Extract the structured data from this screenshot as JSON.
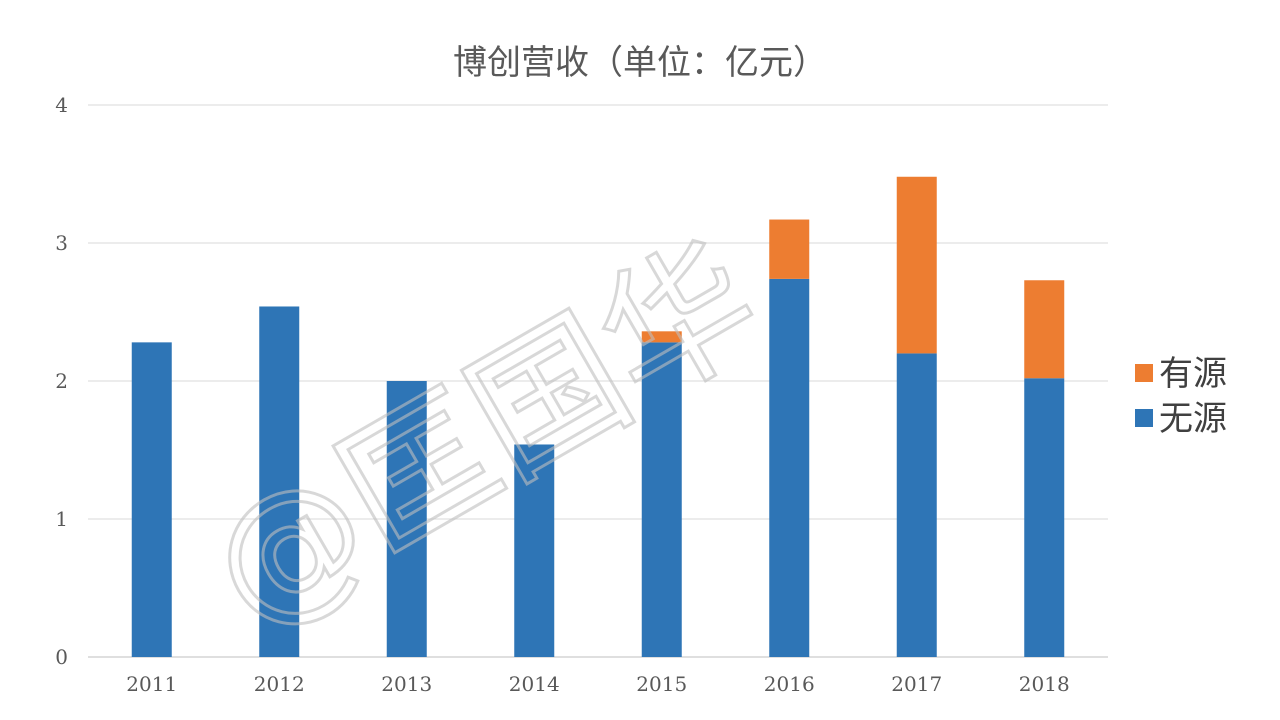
{
  "chart_data": {
    "type": "bar",
    "stacked": true,
    "title": "博创营收（单位：亿元）",
    "categories": [
      "2011",
      "2012",
      "2013",
      "2014",
      "2015",
      "2016",
      "2017",
      "2018"
    ],
    "series": [
      {
        "name": "无源",
        "color": "#2e75b6",
        "values": [
          2.28,
          2.54,
          2.0,
          1.54,
          2.28,
          2.74,
          2.2,
          2.02
        ]
      },
      {
        "name": "有源",
        "color": "#ed7d31",
        "values": [
          0,
          0,
          0,
          0,
          0.08,
          0.43,
          1.28,
          0.71
        ]
      }
    ],
    "ylim": [
      0,
      4
    ],
    "yticks": [
      0,
      1,
      2,
      3,
      4
    ],
    "grid": true,
    "legend_position": "right"
  },
  "watermark": "@匡国华",
  "colors": {
    "grid": "#d9d9d9",
    "axis": "#bfbfbf"
  }
}
